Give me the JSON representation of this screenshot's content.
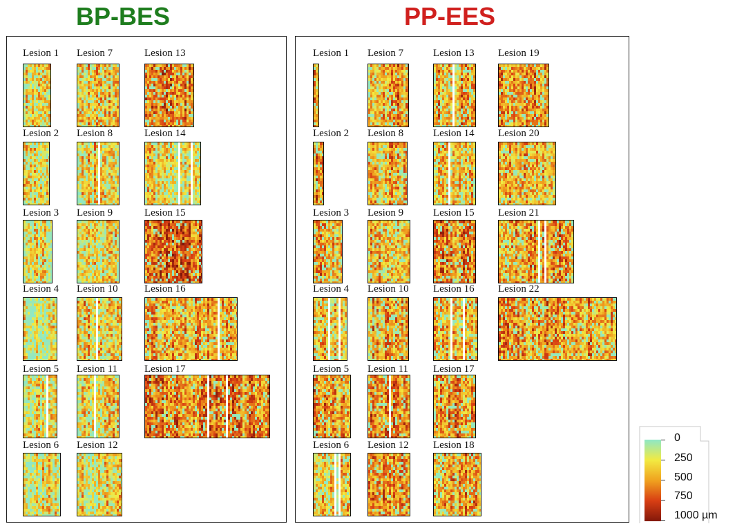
{
  "titles": {
    "left": "BP-BES",
    "right": "PP-EES"
  },
  "title_colors": {
    "left": "#1e7d1e",
    "right": "#d0201e"
  },
  "colormap": [
    "#8ee8c6",
    "#f2ea42",
    "#f0a21f",
    "#d83e13",
    "#82180a"
  ],
  "panels": {
    "left": {
      "lesions": [
        {
          "label": "Lesion 1",
          "level": 0.3,
          "stripes": 0
        },
        {
          "label": "Lesion 2",
          "level": 0.3,
          "stripes": 0
        },
        {
          "label": "Lesion 3",
          "level": 0.25,
          "stripes": 0
        },
        {
          "label": "Lesion 4",
          "level": 0.25,
          "stripes": 0
        },
        {
          "label": "Lesion 5",
          "level": 0.3,
          "stripes": 1
        },
        {
          "label": "Lesion 6",
          "level": 0.3,
          "stripes": 0
        },
        {
          "label": "Lesion 7",
          "level": 0.38,
          "stripes": 0
        },
        {
          "label": "Lesion 8",
          "level": 0.35,
          "stripes": 1
        },
        {
          "label": "Lesion 9",
          "level": 0.35,
          "stripes": 0
        },
        {
          "label": "Lesion 10",
          "level": 0.4,
          "stripes": 1
        },
        {
          "label": "Lesion 11",
          "level": 0.35,
          "stripes": 1
        },
        {
          "label": "Lesion 12",
          "level": 0.32,
          "stripes": 0
        },
        {
          "label": "Lesion 13",
          "level": 0.62,
          "stripes": 0
        },
        {
          "label": "Lesion 14",
          "level": 0.32,
          "stripes": 2
        },
        {
          "label": "Lesion 15",
          "level": 0.68,
          "stripes": 0
        },
        {
          "label": "Lesion 16",
          "level": 0.45,
          "stripes": 2
        },
        {
          "label": "Lesion 17",
          "level": 0.6,
          "stripes": 2
        }
      ]
    },
    "right": {
      "lesions": [
        {
          "label": "Lesion 1",
          "level": 0.5,
          "stripes": 0
        },
        {
          "label": "Lesion 2",
          "level": 0.55,
          "stripes": 0
        },
        {
          "label": "Lesion 3",
          "level": 0.45,
          "stripes": 0
        },
        {
          "label": "Lesion 4",
          "level": 0.45,
          "stripes": 2
        },
        {
          "label": "Lesion 5",
          "level": 0.52,
          "stripes": 0
        },
        {
          "label": "Lesion 6",
          "level": 0.35,
          "stripes": 2
        },
        {
          "label": "Lesion 7",
          "level": 0.5,
          "stripes": 0
        },
        {
          "label": "Lesion 8",
          "level": 0.45,
          "stripes": 0
        },
        {
          "label": "Lesion 9",
          "level": 0.48,
          "stripes": 0
        },
        {
          "label": "Lesion 10",
          "level": 0.48,
          "stripes": 0
        },
        {
          "label": "Lesion 11",
          "level": 0.55,
          "stripes": 1
        },
        {
          "label": "Lesion 12",
          "level": 0.5,
          "stripes": 0
        },
        {
          "label": "Lesion 13",
          "level": 0.48,
          "stripes": 1
        },
        {
          "label": "Lesion 14",
          "level": 0.4,
          "stripes": 1
        },
        {
          "label": "Lesion 15",
          "level": 0.55,
          "stripes": 0
        },
        {
          "label": "Lesion 16",
          "level": 0.45,
          "stripes": 2
        },
        {
          "label": "Lesion 17",
          "level": 0.55,
          "stripes": 0
        },
        {
          "label": "Lesion 18",
          "level": 0.48,
          "stripes": 0
        },
        {
          "label": "Lesion 19",
          "level": 0.55,
          "stripes": 0
        },
        {
          "label": "Lesion 20",
          "level": 0.45,
          "stripes": 0
        },
        {
          "label": "Lesion 21",
          "level": 0.52,
          "stripes": 2
        },
        {
          "label": "Lesion 22",
          "level": 0.52,
          "stripes": 0
        }
      ]
    }
  },
  "legend": {
    "ticks": [
      "0",
      "250",
      "500",
      "750",
      "1000 µm"
    ]
  }
}
